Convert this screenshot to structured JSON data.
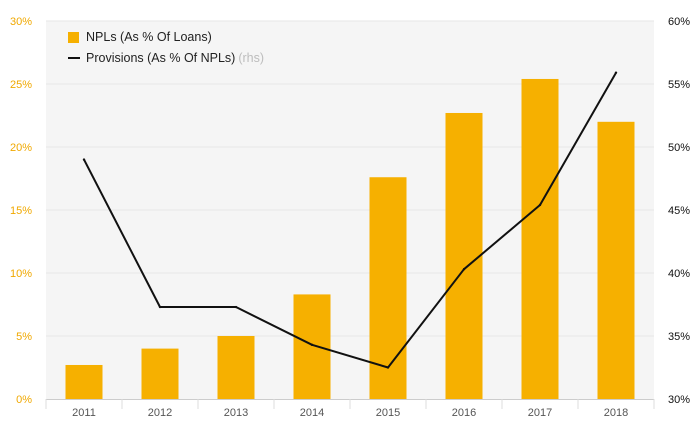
{
  "legend": {
    "bars_label": "NPLs (As % Of Loans)",
    "line_label": "Provisions (As % Of NPLs)",
    "line_suffix": "(rhs)"
  },
  "colors": {
    "bars": "#f6b000",
    "line": "#111111",
    "left_axis_text": "#f0a800",
    "right_axis_text": "#111111",
    "x_axis_text": "#555555",
    "grid": "#e6e6e6",
    "plot_bg": "#f5f5f5"
  },
  "chart_data": {
    "type": "bar",
    "categories": [
      "2011",
      "2012",
      "2013",
      "2014",
      "2015",
      "2016",
      "2017",
      "2018"
    ],
    "series": [
      {
        "name": "NPLs (As % Of Loans)",
        "type": "bar",
        "axis": "left",
        "values": [
          2.7,
          4.0,
          5.0,
          8.3,
          17.6,
          22.7,
          25.4,
          22.0
        ]
      },
      {
        "name": "Provisions (As % Of NPLs) (rhs)",
        "type": "line",
        "axis": "right",
        "values": [
          49.0,
          37.3,
          37.3,
          34.3,
          32.5,
          40.3,
          45.4,
          55.9
        ]
      }
    ],
    "y_left": {
      "ylim": [
        0,
        30
      ],
      "ticks": [
        0,
        5,
        10,
        15,
        20,
        25,
        30
      ],
      "tick_labels": [
        "0%",
        "5%",
        "10%",
        "15%",
        "20%",
        "25%",
        "30%"
      ]
    },
    "y_right": {
      "ylim": [
        30,
        60
      ],
      "ticks": [
        30,
        35,
        40,
        45,
        50,
        55,
        60
      ],
      "tick_labels": [
        "30%",
        "35%",
        "40%",
        "45%",
        "50%",
        "55%",
        "60%"
      ]
    },
    "grid": true,
    "legend_position": "top-left"
  }
}
